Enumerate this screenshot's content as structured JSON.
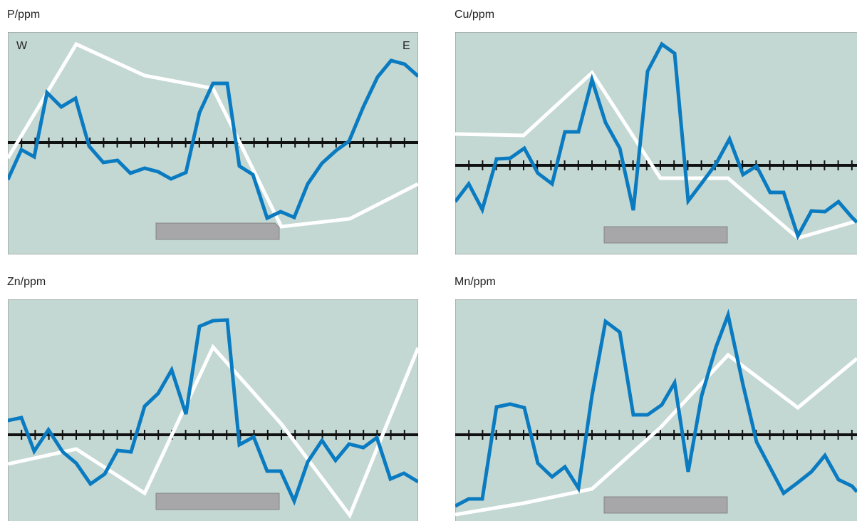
{
  "chart_data": [
    {
      "type": "line",
      "title": "P/ppm",
      "annotations": [
        "W",
        "E"
      ],
      "xlim": [
        0,
        576
      ],
      "ylim": [
        0,
        312
      ],
      "baseline": 157,
      "series": [
        {
          "color": "#ffffff",
          "x": [
            0,
            96,
            192,
            288,
            384,
            480,
            576
          ],
          "values": [
            135,
            295,
            251,
            233,
            39,
            50,
            99
          ]
        },
        {
          "color": "#0a7bc1",
          "x": [
            0,
            19,
            37,
            55,
            75,
            95,
            114,
            134,
            154,
            172,
            192,
            211,
            229,
            250,
            269,
            288,
            308,
            325,
            344,
            364,
            383,
            402,
            421,
            441,
            461,
            479,
            499,
            519,
            538,
            557,
            576
          ],
          "values": [
            105,
            147,
            137,
            227,
            207,
            219,
            152,
            129,
            132,
            114,
            121,
            116,
            106,
            115,
            199,
            240,
            240,
            124,
            112,
            51,
            60,
            52,
            99,
            128,
            146,
            159,
            207,
            249,
            272,
            267,
            250
          ]
        }
      ]
    },
    {
      "type": "line",
      "title": "Cu/ppm",
      "xlim": [
        0,
        576
      ],
      "ylim": [
        0,
        312
      ],
      "baseline": 125,
      "series": [
        {
          "color": "#ffffff",
          "x": [
            0,
            96,
            192,
            288,
            383,
            481,
            564
          ],
          "values": [
            169,
            167,
            255,
            107,
            107,
            23,
            47
          ]
        },
        {
          "color": "#0a7bc1",
          "x": [
            0,
            19,
            38,
            58,
            77,
            97,
            116,
            136,
            154,
            173,
            192,
            211,
            231,
            250,
            270,
            290,
            308,
            327,
            346,
            366,
            385,
            404,
            423,
            442,
            461,
            481,
            500,
            519,
            538,
            557,
            564
          ],
          "values": [
            74,
            99,
            63,
            134,
            135,
            149,
            114,
            99,
            172,
            172,
            245,
            185,
            149,
            62,
            257,
            295,
            282,
            75,
            100,
            127,
            162,
            112,
            124,
            87,
            87,
            26,
            61,
            60,
            74,
            52,
            45
          ]
        }
      ]
    },
    {
      "type": "line",
      "title": "Zn/ppm",
      "xlim": [
        0,
        576
      ],
      "ylim": [
        0,
        312
      ],
      "baseline": 122,
      "series": [
        {
          "color": "#ffffff",
          "x": [
            0,
            96,
            192,
            288,
            384,
            480,
            576
          ],
          "values": [
            81,
            102,
            40,
            245,
            137,
            9,
            244
          ]
        },
        {
          "color": "#0a7bc1",
          "x": [
            0,
            19,
            37,
            57,
            77,
            96,
            116,
            136,
            154,
            173,
            192,
            211,
            230,
            250,
            269,
            288,
            308,
            325,
            345,
            364,
            383,
            402,
            421,
            441,
            460,
            479,
            499,
            518,
            537,
            556,
            576
          ],
          "values": [
            142,
            146,
            99,
            129,
            98,
            82,
            53,
            67,
            100,
            98,
            162,
            180,
            213,
            151,
            274,
            282,
            283,
            108,
            119,
            71,
            71,
            29,
            84,
            114,
            86,
            109,
            104,
            118,
            60,
            68,
            56
          ]
        }
      ]
    },
    {
      "type": "line",
      "title": "Mn/ppm",
      "xlim": [
        0,
        576
      ],
      "ylim": [
        0,
        312
      ],
      "baseline": 122,
      "series": [
        {
          "color": "#ffffff",
          "x": [
            0,
            96,
            192,
            288,
            383,
            481,
            564
          ],
          "values": [
            10,
            26,
            46,
            132,
            234,
            160,
            229
          ]
        },
        {
          "color": "#0a7bc1",
          "x": [
            0,
            19,
            38,
            58,
            77,
            97,
            116,
            136,
            154,
            173,
            192,
            211,
            231,
            250,
            270,
            290,
            308,
            327,
            346,
            366,
            383,
            404,
            423,
            442,
            461,
            481,
            500,
            519,
            538,
            557,
            564
          ],
          "values": [
            22,
            32,
            32,
            161,
            165,
            160,
            82,
            63,
            77,
            47,
            177,
            281,
            266,
            150,
            150,
            164,
            195,
            70,
            177,
            245,
            290,
            192,
            112,
            76,
            40,
            55,
            70,
            93,
            59,
            50,
            42
          ]
        }
      ]
    }
  ]
}
